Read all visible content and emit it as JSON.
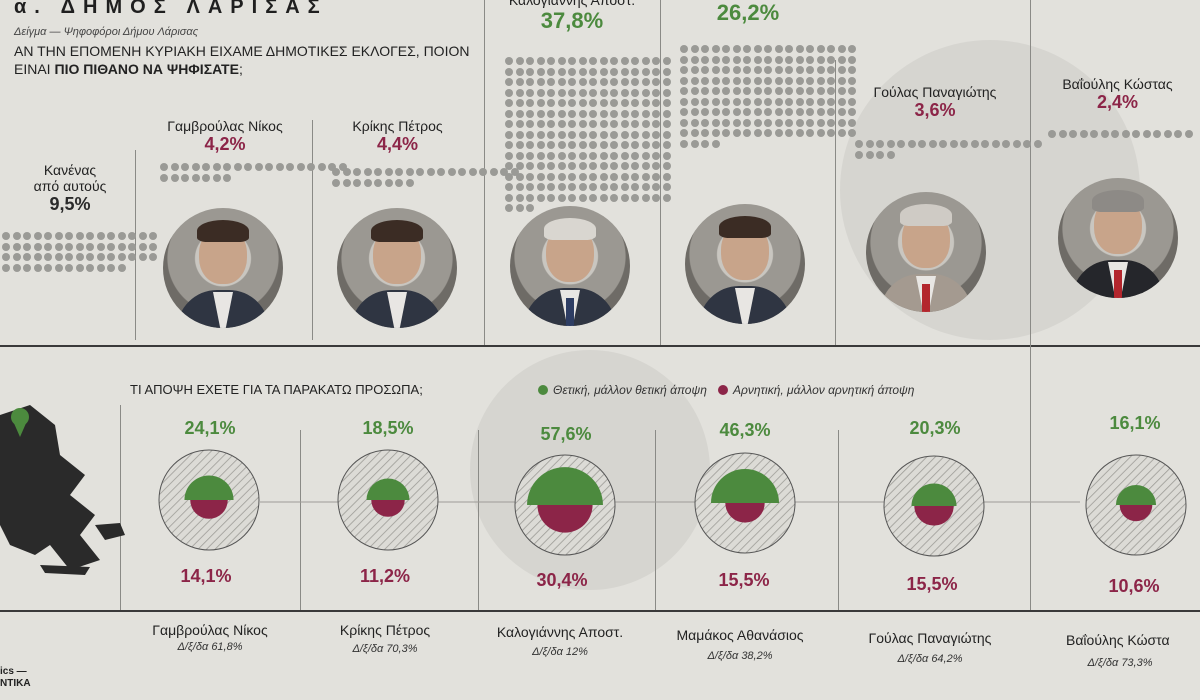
{
  "header": {
    "title": "α. ΔΗΜΟΣ ΛΑΡΙΣΑΣ",
    "sample": "Δείγμα — Ψηφοφόροι Δήμου Λάρισας",
    "question_part1": "ΑΝ ΤΗΝ ΕΠΟΜΕΝΗ ΚΥΡΙΑΚΗ ΕΙΧΑΜΕ ΔΗΜΟΤΙΚΕΣ ΕΚΛΟΓΕΣ, ΠΟΙΟΝ ΕΙΝΑΙ ",
    "question_bold": "ΠΙΟ ΠΙΘΑΝΟ ΝΑ ΨΗΦΙΣΑΤΕ",
    "question_end": ";"
  },
  "colors": {
    "positive": "#4c8a3e",
    "negative": "#8c2548",
    "dot": "#9a9a96"
  },
  "chart_data": [
    {
      "type": "bar",
      "title": "ΑΝ ΤΗΝ ΕΠΟΜΕΝΗ ΚΥΡΙΑΚΗ ΕΙΧΑΜΕ ΔΗΜΟΤΙΚΕΣ ΕΚΛΟΓΕΣ, ΠΟΙΟΝ ΕΙΝΑΙ ΠΙΟ ΠΙΘΑΝΟ ΝΑ ΨΗΦΙΣΑΤΕ;",
      "categories": [
        "Κανένας από αυτούς",
        "Γαμβρούλας Νίκος",
        "Κρίκης Πέτρος",
        "Καλογιάννης Αποστ.",
        "",
        "Γούλας Παναγιώτης",
        "Βαΐούλης Κώστας"
      ],
      "values": [
        9.5,
        4.2,
        4.4,
        37.8,
        26.2,
        3.6,
        2.4
      ],
      "labels": [
        "9,5%",
        "4,2%",
        "4,4%",
        "37,8%",
        "26,2%",
        "3,6%",
        "2,4%"
      ]
    },
    {
      "type": "bar",
      "title": "ΤΙ ΑΠΟΨΗ ΕΧΕΤΕ ΓΙΑ ΤΑ ΠΑΡΑΚΑΤΩ ΠΡΟΣΩΠΑ;",
      "categories": [
        "Γαμβρούλας Νίκος",
        "Κρίκης Πέτρος",
        "Καλογιάννης Αποστ.",
        "Μαμάκος Αθανάσιος",
        "Γούλας Παναγιώτης",
        "Βαΐούλης Κώστα"
      ],
      "series": [
        {
          "name": "Θετική, μάλλον θετική άποψη",
          "values": [
            24.1,
            18.5,
            57.6,
            46.3,
            20.3,
            16.1
          ],
          "labels": [
            "24,1%",
            "18,5%",
            "57,6%",
            "46,3%",
            "20,3%",
            "16,1%"
          ]
        },
        {
          "name": "Αρνητική, μάλλον αρνητική άποψη",
          "values": [
            14.1,
            11.2,
            30.4,
            15.5,
            15.5,
            10.6
          ],
          "labels": [
            "14,1%",
            "11,2%",
            "30,4%",
            "15,5%",
            "15,5%",
            "10,6%"
          ]
        }
      ],
      "undecided": [
        "Δ/ξ/δα 61,8%",
        "Δ/ξ/δα 70,3%",
        "Δ/ξ/δα 12%",
        "Δ/ξ/δα 38,2%",
        "Δ/ξ/δα 64,2%",
        "Δ/ξ/δα 73,3%"
      ],
      "legend_position": "top"
    }
  ],
  "vote": {
    "candidates": [
      {
        "line1": "Κανένας",
        "line2": "από αυτούς",
        "pct": "9,5%"
      },
      {
        "line1": "Γαμβρούλας Νίκος",
        "pct": "4,2%"
      },
      {
        "line1": "Κρίκης Πέτρος",
        "pct": "4,4%"
      },
      {
        "line1": "Καλογιάννης Αποστ.",
        "pct": "37,8%"
      },
      {
        "line1": "",
        "pct": "26,2%"
      },
      {
        "line1": "Γούλας Παναγιώτης",
        "pct": "3,6%"
      },
      {
        "line1": "Βαΐούλης Κώστας",
        "pct": "2,4%"
      }
    ]
  },
  "opinion": {
    "question": "ΤΙ ΑΠΟΨΗ ΕΧΕΤΕ ΓΙΑ ΤΑ ΠΑΡΑΚΑΤΩ ΠΡΟΣΩΠΑ;",
    "legend_positive": "Θετική, μάλλον θετική άποψη",
    "legend_negative": "Αρνητική, μάλλον αρνητική άποψη"
  },
  "footer": {
    "credit_line1": "ics —",
    "credit_line2": "NTIKA"
  }
}
